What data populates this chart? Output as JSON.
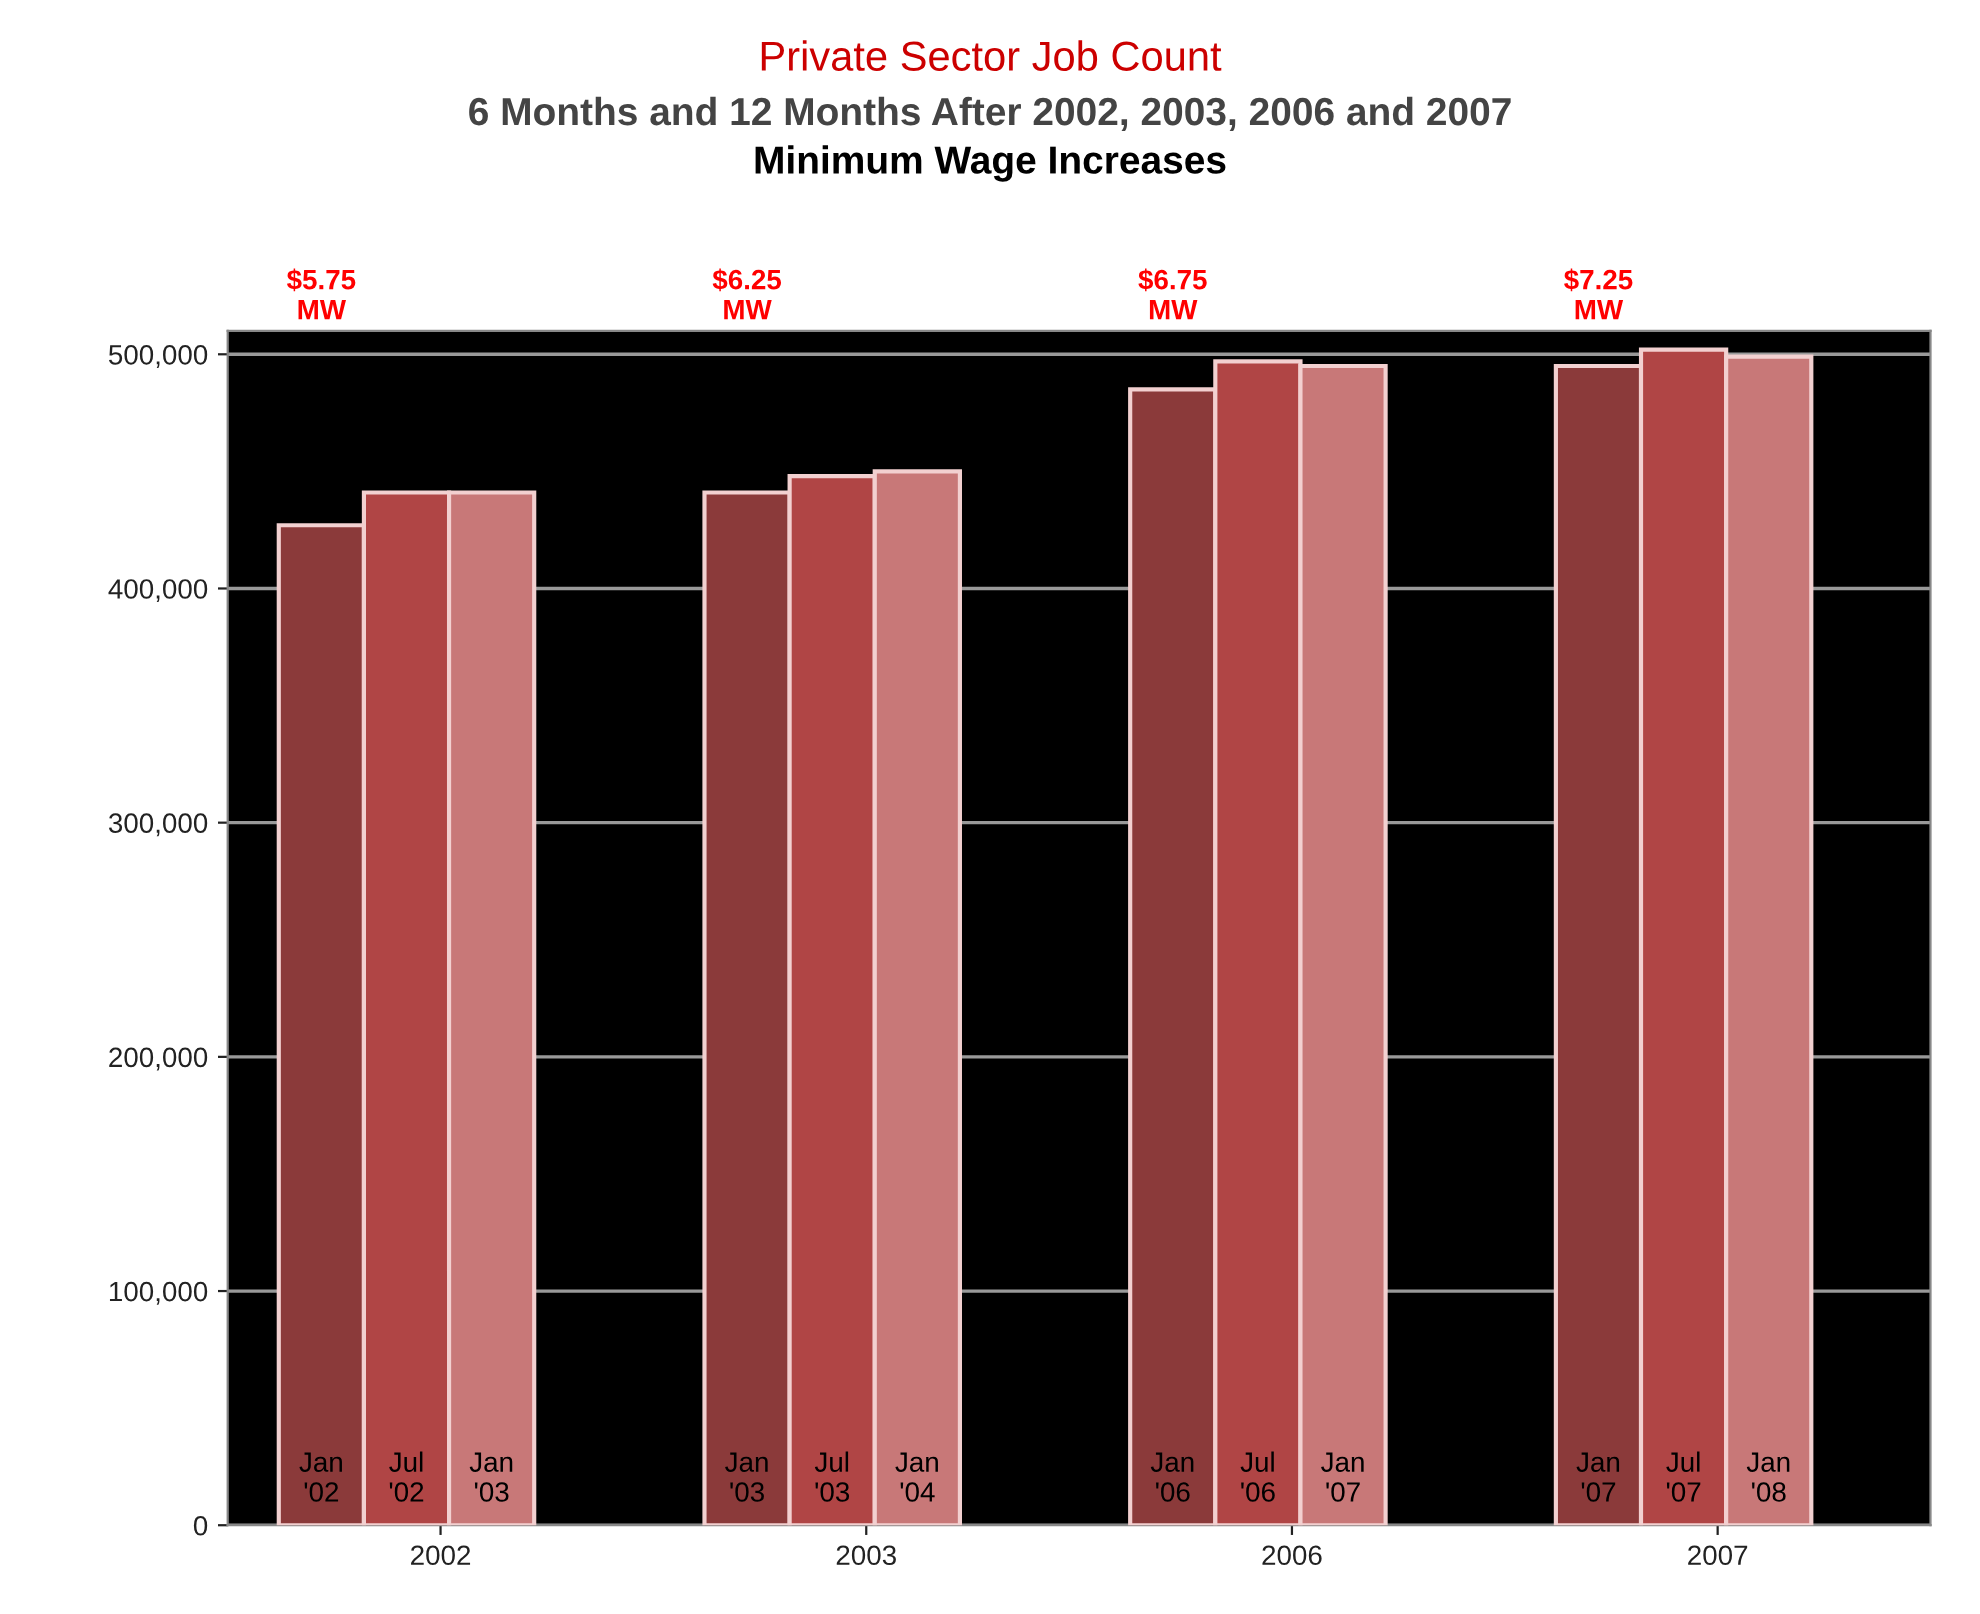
{
  "chart_data": {
    "type": "bar",
    "title": "Private Sector Job Count",
    "subtitle": "6 Months and 12 Months After 2002, 2003, 2006 and 2007\nMinimum Wage Increases",
    "categories": [
      "2002",
      "2003",
      "2006",
      "2007"
    ],
    "series": [
      {
        "color": "#8b3a3a",
        "values": [
          427000,
          441000,
          485000,
          495000
        ]
      },
      {
        "color": "#b04545",
        "values": [
          441000,
          448000,
          497000,
          502000
        ]
      },
      {
        "color": "#c87878",
        "values": [
          441000,
          450000,
          495000,
          499000
        ]
      }
    ],
    "annotations": [
      "$5.75\nMW",
      "$6.25\nMW",
      "$6.75\nMW",
      "$7.25\nMW",
      "Jan\n'02",
      "Jul\n'02",
      "Jan\n'03",
      "Jan\n'03",
      "Jul\n'03",
      "Jan\n'04",
      "Jan\n'06",
      "Jul\n'06",
      "Jan\n'07",
      "Jan\n'07",
      "Jul\n'07",
      "Jan\n'08"
    ],
    "ylim": [
      0,
      510000
    ],
    "yticks": [
      {
        "value": 0,
        "label": "0"
      },
      {
        "value": 100000,
        "label": "100,000"
      },
      {
        "value": 200000,
        "label": "200,000"
      },
      {
        "value": 300000,
        "label": "300,000"
      },
      {
        "value": 400000,
        "label": "400,000"
      },
      {
        "value": 500000,
        "label": "500,000"
      }
    ],
    "grid": "y",
    "legend": false
  }
}
